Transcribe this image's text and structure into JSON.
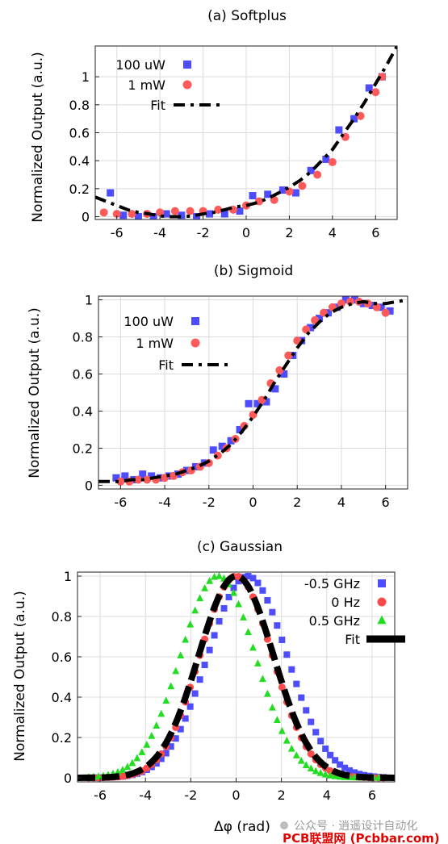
{
  "chart_data": [
    {
      "type": "scatter",
      "title": "(a) Softplus",
      "xlabel": "",
      "ylabel": "Normalized Output (a.u.)",
      "xlim": [
        -7,
        7
      ],
      "ylim": [
        -0.02,
        1.22
      ],
      "xticks": [
        "-6",
        "-4",
        "-2",
        "0",
        "2",
        "4",
        "6"
      ],
      "yticks": [
        "0",
        "0.2",
        "0.4",
        "0.6",
        "0.8",
        "1"
      ],
      "legend_position": "top-left",
      "series": [
        {
          "name": "100 uW",
          "marker": "square",
          "color": "#4d4dff",
          "x": [
            -6.3,
            -5.7,
            -5.0,
            -4.3,
            -3.7,
            -3.0,
            -2.3,
            -1.7,
            -1.0,
            -0.3,
            0.3,
            1.0,
            1.7,
            2.3,
            3.0,
            3.7,
            4.3,
            5.0,
            5.7,
            6.3
          ],
          "y": [
            0.17,
            0.01,
            0.0,
            0.0,
            0.02,
            0.01,
            0.0,
            0.02,
            0.02,
            0.04,
            0.15,
            0.16,
            0.19,
            0.17,
            0.33,
            0.41,
            0.62,
            0.7,
            0.92,
            1.0
          ]
        },
        {
          "name": "1 mW",
          "marker": "circle",
          "color": "#ff5a5a",
          "x": [
            -6.6,
            -6.0,
            -5.3,
            -4.6,
            -4.0,
            -3.3,
            -2.6,
            -2.0,
            -1.3,
            -0.6,
            0.0,
            0.6,
            1.3,
            2.0,
            2.6,
            3.3,
            4.0,
            4.6,
            5.3,
            6.0,
            6.3
          ],
          "y": [
            0.03,
            0.02,
            0.02,
            0.02,
            0.03,
            0.04,
            0.04,
            0.04,
            0.05,
            0.05,
            0.08,
            0.11,
            0.12,
            0.18,
            0.22,
            0.3,
            0.39,
            0.57,
            0.72,
            0.89,
            1.0
          ]
        },
        {
          "name": "Fit",
          "marker": "dashdot",
          "color": "#000000",
          "function": "softplus",
          "x": [
            -7.0,
            -6.5,
            -6.0,
            -5.5,
            -5.0,
            -4.5,
            -4.0,
            -3.5,
            -3.0,
            -2.5,
            -2.0,
            -1.5,
            -1.0,
            -0.5,
            0.0,
            0.5,
            1.0,
            1.5,
            2.0,
            2.5,
            3.0,
            3.5,
            4.0,
            4.5,
            5.0,
            5.5,
            6.0,
            6.5,
            7.0
          ],
          "y": [
            0.14,
            0.11,
            0.08,
            0.05,
            0.03,
            0.02,
            0.005,
            0.0,
            0.0,
            0.005,
            0.02,
            0.03,
            0.05,
            0.07,
            0.08,
            0.1,
            0.13,
            0.17,
            0.21,
            0.26,
            0.32,
            0.4,
            0.48,
            0.59,
            0.7,
            0.82,
            0.95,
            1.08,
            1.22
          ]
        }
      ]
    },
    {
      "type": "scatter",
      "title": "(b) Sigmoid",
      "xlabel": "",
      "ylabel": "Normalized Output (a.u.)",
      "xlim": [
        -7,
        7
      ],
      "ylim": [
        -0.02,
        1.02
      ],
      "xticks": [
        "-6",
        "-4",
        "-2",
        "0",
        "2",
        "4",
        "6"
      ],
      "yticks": [
        "0",
        "0.2",
        "0.4",
        "0.6",
        "0.8",
        "1"
      ],
      "legend_position": "top-left",
      "series": [
        {
          "name": "100 uW",
          "marker": "square",
          "color": "#4d4dff",
          "x": [
            -6.2,
            -5.8,
            -5.4,
            -5.0,
            -4.6,
            -4.2,
            -3.8,
            -3.4,
            -3.0,
            -2.6,
            -2.2,
            -1.8,
            -1.4,
            -1.0,
            -0.6,
            -0.2,
            0.2,
            0.6,
            1.0,
            1.4,
            1.8,
            2.2,
            2.6,
            3.0,
            3.4,
            3.8,
            4.2,
            4.6,
            5.0,
            5.4,
            5.8,
            6.2
          ],
          "y": [
            0.04,
            0.05,
            0.03,
            0.06,
            0.05,
            0.04,
            0.05,
            0.06,
            0.08,
            0.1,
            0.12,
            0.19,
            0.21,
            0.24,
            0.3,
            0.44,
            0.44,
            0.45,
            0.52,
            0.6,
            0.7,
            0.78,
            0.85,
            0.9,
            0.93,
            0.96,
            1.0,
            1.0,
            0.98,
            0.97,
            0.96,
            0.94
          ]
        },
        {
          "name": "1 mW",
          "marker": "circle",
          "color": "#ff5a5a",
          "x": [
            -6.0,
            -5.6,
            -5.2,
            -4.8,
            -4.4,
            -4.0,
            -3.6,
            -3.2,
            -2.8,
            -2.4,
            -2.0,
            -1.6,
            -1.2,
            -0.8,
            -0.4,
            0.0,
            0.4,
            0.8,
            1.2,
            1.6,
            2.0,
            2.4,
            2.8,
            3.2,
            3.6,
            4.0,
            4.4,
            4.8,
            5.2,
            5.6,
            6.0
          ],
          "y": [
            0.02,
            0.02,
            0.03,
            0.03,
            0.03,
            0.04,
            0.05,
            0.07,
            0.08,
            0.1,
            0.12,
            0.16,
            0.2,
            0.25,
            0.32,
            0.38,
            0.46,
            0.55,
            0.62,
            0.7,
            0.78,
            0.84,
            0.89,
            0.93,
            0.96,
            0.98,
            0.99,
            0.99,
            0.98,
            0.96,
            0.93
          ]
        },
        {
          "name": "Fit",
          "marker": "dashdot",
          "color": "#000000",
          "function": "sigmoid",
          "x": [
            -7.0,
            -6.5,
            -6.0,
            -5.5,
            -5.0,
            -4.5,
            -4.0,
            -3.5,
            -3.0,
            -2.5,
            -2.0,
            -1.5,
            -1.0,
            -0.5,
            0.0,
            0.5,
            1.0,
            1.5,
            2.0,
            2.5,
            3.0,
            3.5,
            4.0,
            4.5,
            5.0,
            5.5,
            6.0,
            6.5,
            7.0
          ],
          "y": [
            0.02,
            0.02,
            0.02,
            0.03,
            0.03,
            0.04,
            0.05,
            0.06,
            0.08,
            0.1,
            0.13,
            0.17,
            0.22,
            0.29,
            0.37,
            0.46,
            0.56,
            0.65,
            0.74,
            0.82,
            0.88,
            0.93,
            0.96,
            0.98,
            0.99,
            0.98,
            0.98,
            0.99,
            1.0
          ]
        }
      ]
    },
    {
      "type": "scatter",
      "title": "(c) Gaussian",
      "xlabel": "Δφ (rad)",
      "ylabel": "Normalized Output (a.u.)",
      "xlim": [
        -7,
        7
      ],
      "ylim": [
        -0.02,
        1.02
      ],
      "xticks": [
        "-6",
        "-4",
        "-2",
        "0",
        "2",
        "4",
        "6"
      ],
      "yticks": [
        "0",
        "0.2",
        "0.4",
        "0.6",
        "0.8",
        "1"
      ],
      "legend_position": "top-right",
      "series": [
        {
          "name": "-0.5 GHz",
          "marker": "square",
          "color": "#4d4dff",
          "function": "gaussian",
          "center": 0.5,
          "sigma": 1.75,
          "x_range": [
            -6.5,
            6.5
          ],
          "points": 62
        },
        {
          "name": "0 Hz",
          "marker": "circle",
          "color": "#ff4a4a",
          "function": "gaussian",
          "center": 0.0,
          "sigma": 1.6,
          "x_range": [
            -6.5,
            6.5
          ],
          "points": 62
        },
        {
          "name": "0.5 GHz",
          "marker": "triangle",
          "color": "#22dd22",
          "function": "gaussian",
          "center": -0.8,
          "sigma": 1.65,
          "x_range": [
            -6.5,
            6.5
          ],
          "points": 62
        },
        {
          "name": "Fit",
          "marker": "thick-dash",
          "color": "#000000",
          "function": "gaussian",
          "center": 0.0,
          "sigma": 1.65,
          "x_range": [
            -7.0,
            7.0
          ]
        }
      ]
    }
  ],
  "watermark": {
    "faint": "公众号 · 逍遥设计自动化",
    "brand": "PCB联盟网 (Pcbbar.com)"
  }
}
